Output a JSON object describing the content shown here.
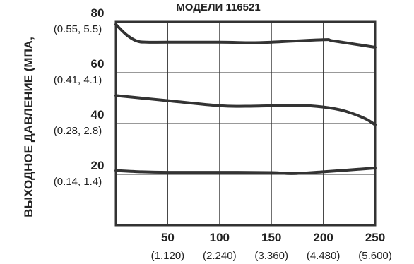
{
  "chart_data": {
    "type": "line",
    "title": "МОДЕЛИ 116521",
    "ylabel": "ВЫХОДНОЕ ДАВЛЕНИЕ (МПА,",
    "xlabel": "",
    "xlim": [
      0,
      250
    ],
    "ylim": [
      0,
      80
    ],
    "grid": true,
    "x_ticks": [
      {
        "main": "50",
        "sub": "(1.120)",
        "value": 50
      },
      {
        "main": "100",
        "sub": "(2.240)",
        "value": 100
      },
      {
        "main": "150",
        "sub": "(3.360)",
        "value": 150
      },
      {
        "main": "200",
        "sub": "(4.480)",
        "value": 200
      },
      {
        "main": "250",
        "sub": "(5.600)",
        "value": 250
      }
    ],
    "y_ticks": [
      {
        "main": "20",
        "sub": "(0.14, 1.4)",
        "value": 20
      },
      {
        "main": "40",
        "sub": "(0.28, 2.8)",
        "value": 40
      },
      {
        "main": "60",
        "sub": "(0.41, 4.1)",
        "value": 60
      },
      {
        "main": "80",
        "sub": "(0.55, 5.5)",
        "value": 80
      }
    ],
    "series": [
      {
        "x": [
          0,
          10,
          20,
          30,
          50,
          100,
          130,
          150,
          200,
          210,
          250
        ],
        "y": [
          79,
          75,
          72.5,
          72,
          72,
          72,
          71.8,
          72,
          73,
          72.5,
          70
        ]
      },
      {
        "x": [
          0,
          25,
          50,
          100,
          125,
          150,
          175,
          200,
          220,
          240,
          250
        ],
        "y": [
          51,
          50,
          49,
          47,
          46.8,
          47,
          47.2,
          46.5,
          45,
          42,
          39.5
        ]
      },
      {
        "x": [
          0,
          25,
          50,
          100,
          150,
          170,
          200,
          250
        ],
        "y": [
          21.5,
          21,
          20.8,
          20.8,
          20.7,
          20.3,
          21,
          22.5
        ]
      }
    ]
  }
}
